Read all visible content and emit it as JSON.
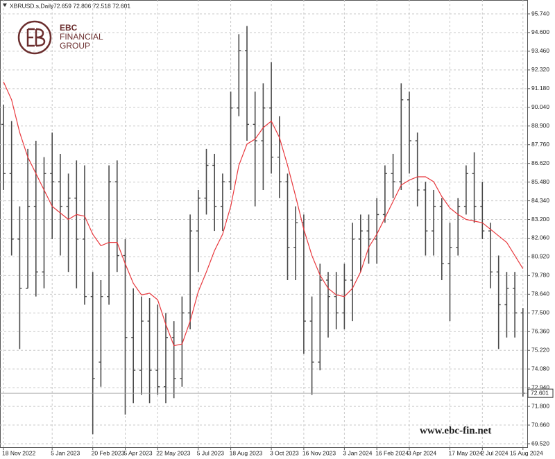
{
  "chart_data": {
    "type": "ohlc",
    "title": "XBRUSD.s,Daily",
    "ohlc_readout": "72.659 72.806 72.518 72.601",
    "logo_lines": [
      "EBC",
      "FINANCIAL",
      "GROUP"
    ],
    "watermark": "www.ebc-fin.net",
    "categories": [
      "18 Nov 2022",
      null,
      null,
      null,
      null,
      null,
      "5 Jan 2023",
      null,
      null,
      null,
      null,
      "20 Feb 2023",
      null,
      null,
      null,
      "5 Apr 2023",
      null,
      null,
      null,
      "22 May 2023",
      null,
      null,
      null,
      null,
      "5 Jul 2023",
      null,
      null,
      null,
      "18 Aug 2023",
      null,
      null,
      null,
      null,
      "3 Oct 2023",
      null,
      null,
      null,
      "16 Nov 2023",
      null,
      null,
      null,
      null,
      "3 Jan 2024",
      null,
      null,
      null,
      "16 Feb 2024",
      null,
      null,
      null,
      "3 Apr 2024",
      null,
      null,
      null,
      null,
      "17 May 2024",
      null,
      null,
      null,
      "2 Jul 2024",
      null,
      null,
      null,
      null,
      "15 Aug 2024"
    ],
    "open": [
      89,
      86,
      82,
      79,
      84,
      80,
      86,
      85.5,
      84,
      84.5,
      82,
      78.5,
      74.5,
      78.5,
      85.5,
      81,
      76,
      74,
      77,
      74,
      73,
      76,
      73.5,
      77.5,
      82.5,
      84.5,
      86.5,
      84,
      85.5,
      90,
      93.5,
      89,
      88,
      90,
      87,
      85.5,
      81.5,
      83,
      77,
      74.5,
      79.5,
      78.5,
      77.5,
      79.5,
      82,
      82.5,
      82,
      83.5,
      86,
      85.5,
      90.5,
      88,
      85,
      82.5,
      84,
      80.5,
      81.5,
      84,
      86,
      84,
      82.5,
      80,
      78,
      79,
      77.5
    ],
    "high": [
      90.2,
      89.2,
      84,
      87.5,
      88,
      87,
      88.5,
      87.2,
      86,
      86.8,
      86.5,
      80,
      79.5,
      86.5,
      86.8,
      82,
      79,
      78.5,
      78.4,
      78,
      77.5,
      77,
      78.5,
      83.5,
      85,
      87.5,
      87.2,
      86,
      91,
      94.5,
      95,
      91,
      91.5,
      92.8,
      89.5,
      86,
      84,
      83.5,
      78.5,
      80.5,
      80,
      80,
      80.5,
      83,
      83.5,
      83.5,
      84.5,
      86.5,
      87.2,
      91.5,
      91,
      88.5,
      85.5,
      85,
      84.5,
      83,
      84.5,
      86.5,
      87.3,
      85.5,
      83,
      81,
      80,
      80,
      77.8
    ],
    "low": [
      85,
      81,
      75.3,
      79,
      78.5,
      79,
      82,
      81,
      80,
      79,
      78,
      70.1,
      73,
      78,
      80,
      71.3,
      72,
      72.5,
      72,
      72.5,
      72,
      72.3,
      73,
      76.5,
      80,
      83.5,
      82.5,
      82.5,
      85,
      89.5,
      88,
      84,
      85,
      86,
      84.5,
      79.5,
      79.5,
      75,
      72.5,
      74,
      76,
      76.5,
      76.5,
      77,
      80,
      80.5,
      80.5,
      83,
      84.5,
      85,
      86,
      84,
      81,
      81,
      79.5,
      77,
      81,
      83.5,
      83,
      82,
      79,
      75.3,
      76,
      76,
      72.4
    ],
    "close": [
      86,
      82,
      79,
      84,
      80,
      86,
      85.5,
      84,
      84.5,
      82,
      78.5,
      73.5,
      78.5,
      85.5,
      81,
      76,
      74,
      77,
      74,
      73,
      76,
      73.5,
      77.5,
      82.5,
      84.5,
      86.5,
      84,
      85.5,
      90,
      93.5,
      89,
      88,
      90,
      87,
      85.5,
      81.5,
      83,
      77,
      74.5,
      79.5,
      78.5,
      77.5,
      79.5,
      82,
      82.5,
      82,
      83.5,
      86,
      85.5,
      90.5,
      88,
      85,
      82.5,
      84,
      80.5,
      81.5,
      84,
      86,
      84,
      82.5,
      80,
      78,
      79,
      77.5,
      72.601
    ],
    "bar_color": "#4a4a4a",
    "moving_average": {
      "color": "#e8383d",
      "values": [
        91.6,
        90.5,
        88.5,
        87,
        86,
        85,
        84,
        83.6,
        83.2,
        83.5,
        83.4,
        82.3,
        81.6,
        81.8,
        81.8,
        80.5,
        79.3,
        78.6,
        78.7,
        78.3,
        76.8,
        75.5,
        75.6,
        77,
        78.8,
        80,
        81.3,
        82.3,
        84,
        86.5,
        87.8,
        88.1,
        88.8,
        89.2,
        88.2,
        86.5,
        84.6,
        82.6,
        81,
        79.8,
        79,
        78.6,
        78.5,
        79,
        80,
        81.5,
        82.3,
        83.3,
        84.3,
        85.3,
        85.6,
        85.8,
        85.8,
        85.5,
        84.6,
        83.9,
        83.5,
        83.2,
        83.1,
        83,
        82.6,
        82.2,
        81.8,
        81,
        80.2
      ]
    },
    "last_price": {
      "value": 72.601,
      "label": "72.601"
    },
    "ylim": [
      69.309,
      96.586
    ],
    "yticks": [
      {
        "value": 95.74,
        "label": "95.740"
      },
      {
        "value": 94.6,
        "label": "94.600"
      },
      {
        "value": 93.46,
        "label": "93.460"
      },
      {
        "value": 92.32,
        "label": "92.320"
      },
      {
        "value": 91.18,
        "label": "91.180"
      },
      {
        "value": 90.04,
        "label": "90.040"
      },
      {
        "value": 88.9,
        "label": "88.900"
      },
      {
        "value": 87.76,
        "label": "87.760"
      },
      {
        "value": 86.62,
        "label": "86.620"
      },
      {
        "value": 85.48,
        "label": "85.480"
      },
      {
        "value": 84.34,
        "label": "84.340"
      },
      {
        "value": 83.2,
        "label": "83.200"
      },
      {
        "value": 82.06,
        "label": "82.060"
      },
      {
        "value": 80.92,
        "label": "80.920"
      },
      {
        "value": 79.78,
        "label": "79.780"
      },
      {
        "value": 78.64,
        "label": "78.640"
      },
      {
        "value": 77.5,
        "label": "77.500"
      },
      {
        "value": 76.36,
        "label": "76.360"
      },
      {
        "value": 75.22,
        "label": "75.220"
      },
      {
        "value": 74.08,
        "label": "74.080"
      },
      {
        "value": 72.94,
        "label": "72.940"
      },
      {
        "value": 71.8,
        "label": "71.800"
      },
      {
        "value": 70.66,
        "label": "70.660"
      },
      {
        "value": 69.52,
        "label": "69.520"
      }
    ],
    "grid": true
  }
}
